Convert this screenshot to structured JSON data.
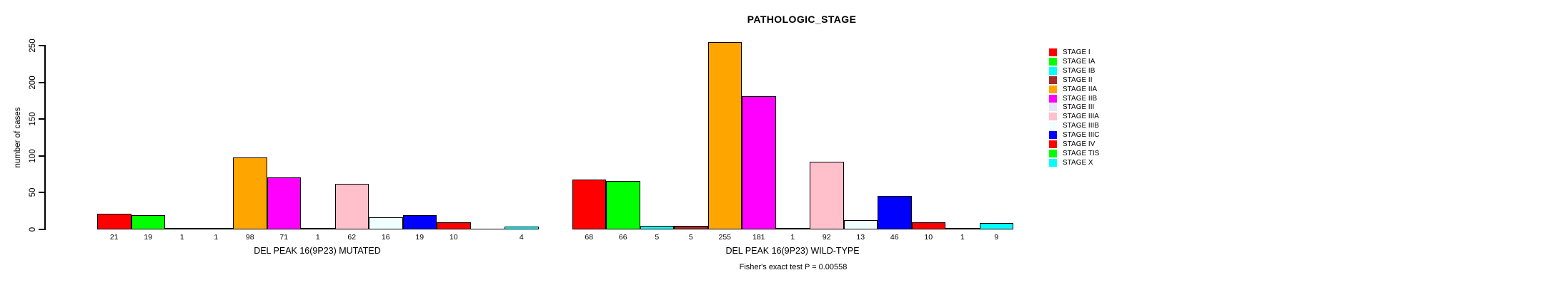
{
  "title": "PATHOLOGIC_STAGE",
  "footer": "Fisher's exact test P = 0.00558",
  "chart_data": {
    "type": "bar",
    "title": "PATHOLOGIC_STAGE",
    "xlabel": "",
    "ylabel": "number of cases",
    "ylim": [
      0,
      250
    ],
    "yticks": [
      0,
      50,
      100,
      150,
      200,
      250
    ],
    "grid": false,
    "legend_position": "right",
    "stages": [
      {
        "label": "STAGE I",
        "color": "#FF0000"
      },
      {
        "label": "STAGE IA",
        "color": "#00FF00"
      },
      {
        "label": "STAGE IB",
        "color": "#00FFFF"
      },
      {
        "label": "STAGE II",
        "color": "#A52A2A"
      },
      {
        "label": "STAGE IIA",
        "color": "#FFA500"
      },
      {
        "label": "STAGE IIB",
        "color": "#FF00FF"
      },
      {
        "label": "STAGE III",
        "color": "#E6E6FA"
      },
      {
        "label": "STAGE IIIA",
        "color": "#FFC0CB"
      },
      {
        "label": "STAGE IIIB",
        "color": "#F0FFFF"
      },
      {
        "label": "STAGE IIIC",
        "color": "#0000FF"
      },
      {
        "label": "STAGE IV",
        "color": "#FF0000"
      },
      {
        "label": "STAGE TIS",
        "color": "#00FF00"
      },
      {
        "label": "STAGE X",
        "color": "#00FFFF"
      }
    ],
    "groups": [
      {
        "label": "DEL PEAK 16(9P23) MUTATED",
        "values": [
          21,
          19,
          1,
          1,
          98,
          71,
          1,
          62,
          16,
          19,
          10,
          0,
          4
        ],
        "value_labels": [
          "21",
          "19",
          "1",
          "1",
          "98",
          "71",
          "1",
          "62",
          "16",
          "19",
          "10",
          "",
          "4"
        ]
      },
      {
        "label": "DEL PEAK 16(9P23) WILD-TYPE",
        "values": [
          68,
          66,
          5,
          5,
          255,
          181,
          1,
          92,
          13,
          46,
          10,
          1,
          9
        ],
        "value_labels": [
          "68",
          "66",
          "5",
          "5",
          "255",
          "181",
          "1",
          "92",
          "13",
          "46",
          "10",
          "1",
          "9"
        ]
      }
    ],
    "annotation": "Fisher's exact test P = 0.00558"
  }
}
